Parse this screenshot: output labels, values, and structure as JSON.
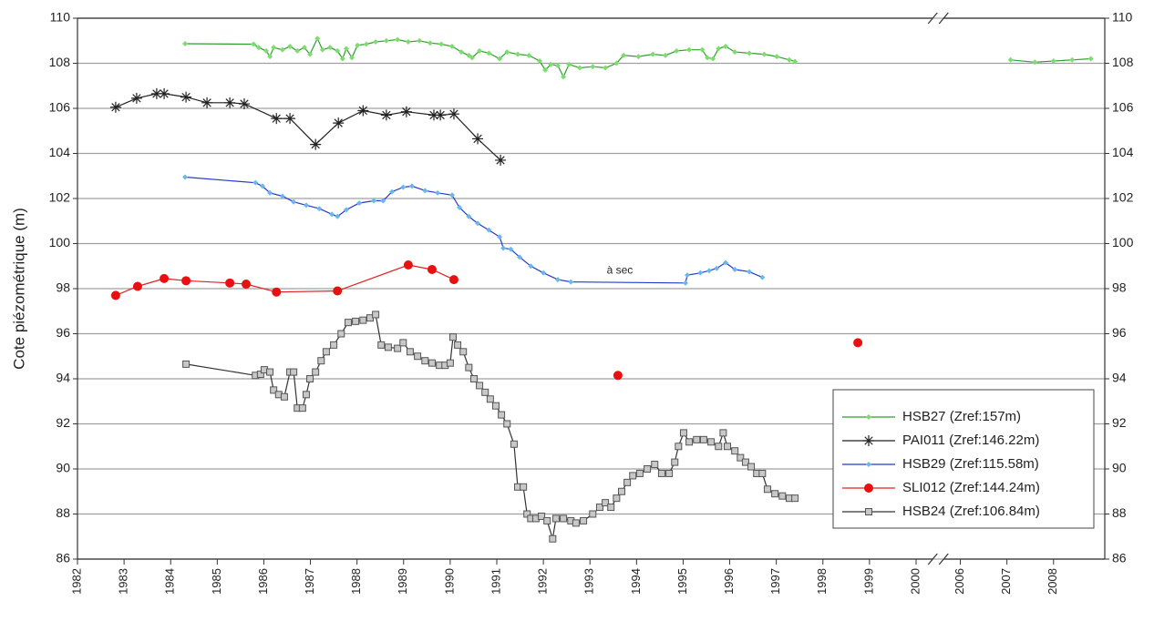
{
  "chart_data": {
    "type": "line",
    "y_label": "Cote piézométrique (m)",
    "xlim": [
      1982,
      2009.1
    ],
    "x_break": [
      2000,
      2006
    ],
    "xticks": [
      1982,
      1983,
      1984,
      1985,
      1986,
      1987,
      1988,
      1989,
      1990,
      1991,
      1992,
      1993,
      1994,
      1995,
      1996,
      1997,
      1998,
      1999,
      2000,
      2006,
      2007,
      2008
    ],
    "ylim": [
      86,
      110
    ],
    "yticks": [
      86,
      88,
      90,
      92,
      94,
      96,
      98,
      100,
      102,
      104,
      106,
      108,
      110
    ],
    "y2lim": [
      86,
      110
    ],
    "y2ticks": [
      86,
      88,
      90,
      92,
      94,
      96,
      98,
      100,
      102,
      104,
      106,
      108,
      110
    ],
    "grid": true,
    "legend": "lower right",
    "annotations": [
      {
        "text": "à sec",
        "x": 1993.64,
        "y": 98.55
      }
    ],
    "series": [
      {
        "name": "HSB27 (Zref:157m)",
        "color": "#2e9e2e",
        "marker_color": "#7ddc6e",
        "marker": "diamond",
        "x": [
          1984.31,
          1985.78,
          1985.89,
          1986.05,
          1986.13,
          1986.21,
          1986.4,
          1986.56,
          1986.72,
          1986.87,
          1986.99,
          1987.15,
          1987.26,
          1987.42,
          1987.58,
          1987.69,
          1987.77,
          1987.89,
          1988.01,
          1988.2,
          1988.4,
          1988.63,
          1988.87,
          1989.1,
          1989.34,
          1989.57,
          1989.81,
          1990.04,
          1990.24,
          1990.4,
          1990.47,
          1990.63,
          1990.83,
          1991.06,
          1991.22,
          1991.45,
          1991.69,
          1991.92,
          1992.04,
          1992.16,
          1992.31,
          1992.43,
          1992.55,
          1992.78,
          1993.06,
          1993.33,
          1993.57,
          1993.72,
          1994.04,
          1994.35,
          1994.62,
          1994.86,
          1995.13,
          1995.41,
          1995.52,
          1995.64,
          1995.76,
          1995.91,
          1996.11,
          1996.42,
          1996.74,
          1997.01,
          1997.28,
          1997.4,
          null,
          2007.08,
          2007.6,
          2008.0,
          2008.4,
          2008.8
        ],
        "values": [
          108.87,
          108.85,
          108.7,
          108.55,
          108.3,
          108.7,
          108.6,
          108.75,
          108.55,
          108.7,
          108.4,
          109.1,
          108.6,
          108.7,
          108.55,
          108.2,
          108.65,
          108.25,
          108.8,
          108.85,
          108.95,
          109.0,
          109.05,
          108.95,
          109.0,
          108.9,
          108.85,
          108.75,
          108.5,
          108.35,
          108.25,
          108.55,
          108.45,
          108.2,
          108.5,
          108.4,
          108.35,
          108.1,
          107.7,
          107.95,
          107.9,
          107.4,
          107.95,
          107.8,
          107.85,
          107.8,
          108.0,
          108.35,
          108.3,
          108.4,
          108.35,
          108.55,
          108.6,
          108.6,
          108.25,
          108.2,
          108.65,
          108.75,
          108.5,
          108.45,
          108.4,
          108.3,
          108.15,
          108.08,
          null,
          108.15,
          108.05,
          108.1,
          108.15,
          108.2
        ]
      },
      {
        "name": "PAI011 (Zref:146.22m)",
        "color": "#222222",
        "marker_color": "#222222",
        "marker": "asterisk",
        "x": [
          1982.82,
          1983.27,
          1983.7,
          1983.86,
          1984.33,
          1984.78,
          1985.27,
          1985.58,
          1986.27,
          1986.56,
          1987.11,
          1987.6,
          1988.13,
          1988.63,
          1989.06,
          1989.65,
          1989.79,
          1990.08,
          1990.59,
          1991.08
        ],
        "values": [
          106.05,
          106.45,
          106.65,
          106.65,
          106.5,
          106.25,
          106.25,
          106.2,
          105.55,
          105.55,
          104.4,
          105.35,
          105.9,
          105.7,
          105.85,
          105.7,
          105.7,
          105.75,
          104.65,
          103.7
        ]
      },
      {
        "name": "HSB29 (Zref:115.58m)",
        "color": "#2438d0",
        "marker_color": "#6ab8ea",
        "marker": "diamond",
        "x": [
          1984.31,
          1985.82,
          1985.97,
          1986.13,
          1986.4,
          1986.64,
          1986.91,
          1987.19,
          1987.46,
          1987.58,
          1987.77,
          1988.05,
          1988.36,
          1988.56,
          1988.75,
          1988.99,
          1989.18,
          1989.46,
          1989.73,
          1990.04,
          1990.2,
          1990.4,
          1990.59,
          1990.83,
          1991.06,
          1991.14,
          1991.3,
          1991.49,
          1991.73,
          1992.0,
          1992.31,
          1992.59,
          1995.05,
          1995.09,
          1995.37,
          1995.56,
          1995.72,
          1995.91,
          1996.11,
          1996.42,
          1996.7
        ],
        "values": [
          102.95,
          102.7,
          102.55,
          102.25,
          102.1,
          101.85,
          101.7,
          101.55,
          101.3,
          101.2,
          101.5,
          101.8,
          101.9,
          101.9,
          102.3,
          102.5,
          102.55,
          102.35,
          102.25,
          102.15,
          101.6,
          101.2,
          100.9,
          100.6,
          100.3,
          99.8,
          99.75,
          99.4,
          99.0,
          98.7,
          98.4,
          98.3,
          98.25,
          98.6,
          98.7,
          98.8,
          98.9,
          99.15,
          98.85,
          98.75,
          98.5
        ]
      },
      {
        "name": "SLI012 (Zref:144.24m)",
        "color": "#e02020",
        "marker_color": "#e81010",
        "marker": "circle",
        "x": [
          1982.82,
          1983.29,
          1983.86,
          1984.33,
          1985.27,
          1985.62,
          1986.27,
          1987.58,
          1989.1,
          1989.61,
          1990.08,
          null,
          1993.6,
          null,
          1998.75
        ],
        "values": [
          97.7,
          98.1,
          98.45,
          98.35,
          98.25,
          98.2,
          97.85,
          97.9,
          99.05,
          98.85,
          98.4,
          null,
          94.15,
          null,
          95.6
        ]
      },
      {
        "name": "HSB24 (Zref:106.84m)",
        "color": "#333333",
        "marker_color": "#c8c8c8",
        "marker": "square",
        "x": [
          1984.33,
          1985.82,
          1985.93,
          1986.01,
          1986.13,
          1986.21,
          1986.32,
          1986.44,
          1986.56,
          1986.64,
          1986.72,
          1986.83,
          1986.91,
          1986.99,
          1987.11,
          1987.23,
          1987.34,
          1987.5,
          1987.66,
          1987.81,
          1987.97,
          1988.13,
          1988.28,
          1988.4,
          1988.52,
          1988.67,
          1988.87,
          1988.99,
          1989.14,
          1989.3,
          1989.46,
          1989.61,
          1989.77,
          1989.89,
          1990.0,
          1990.06,
          1990.16,
          1990.28,
          1990.4,
          1990.51,
          1990.63,
          1990.75,
          1990.86,
          1990.98,
          1991.1,
          1991.22,
          1991.37,
          1991.45,
          1991.57,
          1991.65,
          1991.73,
          1991.84,
          1991.96,
          1992.08,
          1992.2,
          1992.27,
          1992.43,
          1992.59,
          1992.7,
          1992.86,
          1993.06,
          1993.21,
          1993.33,
          1993.45,
          1993.57,
          1993.68,
          1993.8,
          1993.92,
          1994.07,
          1994.23,
          1994.39,
          1994.54,
          1994.7,
          1994.82,
          1994.9,
          1995.01,
          1995.13,
          1995.29,
          1995.44,
          1995.6,
          1995.76,
          1995.86,
          1995.95,
          1996.11,
          1996.23,
          1996.34,
          1996.46,
          1996.58,
          1996.7,
          1996.81,
          1996.97,
          1997.13,
          1997.28,
          1997.4
        ],
        "values": [
          94.65,
          94.15,
          94.2,
          94.4,
          94.3,
          93.5,
          93.3,
          93.2,
          94.3,
          94.3,
          92.7,
          92.7,
          93.3,
          94.0,
          94.3,
          94.8,
          95.2,
          95.5,
          96.0,
          96.5,
          96.55,
          96.6,
          96.7,
          96.85,
          95.5,
          95.4,
          95.35,
          95.6,
          95.2,
          95.0,
          94.8,
          94.7,
          94.6,
          94.6,
          94.7,
          95.85,
          95.5,
          95.2,
          94.5,
          94.0,
          93.7,
          93.4,
          93.1,
          92.8,
          92.4,
          92.0,
          91.1,
          89.2,
          89.2,
          88.0,
          87.8,
          87.8,
          87.9,
          87.7,
          86.9,
          87.8,
          87.8,
          87.7,
          87.6,
          87.7,
          88.0,
          88.3,
          88.5,
          88.3,
          88.7,
          89.0,
          89.4,
          89.7,
          89.8,
          90.0,
          90.2,
          89.8,
          89.8,
          90.3,
          91.0,
          91.6,
          91.2,
          91.3,
          91.3,
          91.2,
          91.0,
          91.6,
          91.0,
          90.8,
          90.5,
          90.3,
          90.1,
          89.8,
          89.8,
          89.1,
          88.9,
          88.8,
          88.7,
          88.7
        ]
      }
    ]
  }
}
